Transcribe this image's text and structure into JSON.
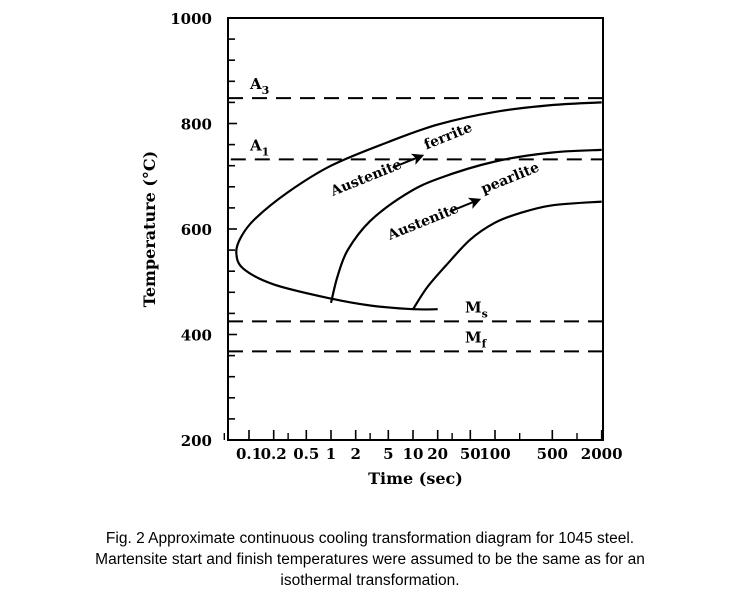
{
  "chart_data": {
    "type": "line",
    "title": "",
    "ylabel": "Temperature (°C)",
    "xlabel": "Time (sec)",
    "ylim": [
      200,
      1000
    ],
    "y_ticks_major": [
      200,
      400,
      600,
      800,
      1000
    ],
    "x_scale": "log",
    "xlim": [
      0.035,
      2000
    ],
    "x_tick_labels": [
      "0.1",
      "0.2",
      "0.5",
      "1",
      "2",
      "5",
      "10",
      "20",
      "50",
      "100",
      "500",
      "2000"
    ],
    "x_tick_values": [
      0.1,
      0.2,
      0.5,
      1,
      2,
      5,
      10,
      20,
      50,
      100,
      500,
      2000
    ],
    "reference_lines": [
      {
        "label_main": "A",
        "label_sub": "3",
        "y": 848,
        "x_start": 0.035
      },
      {
        "label_main": "A",
        "label_sub": "1",
        "y": 732,
        "x_start": 0.06
      },
      {
        "label_main": "M",
        "label_sub": "s",
        "y": 425,
        "x_start": 0.035
      },
      {
        "label_main": "M",
        "label_sub": "f",
        "y": 368,
        "x_start": 0.035
      }
    ],
    "series": [
      {
        "points": [
          [
            2000,
            840
          ],
          [
            500,
            835
          ],
          [
            100,
            822
          ],
          [
            20,
            798
          ],
          [
            5,
            765
          ],
          [
            1,
            720
          ],
          [
            0.3,
            670
          ],
          [
            0.12,
            620
          ],
          [
            0.08,
            585
          ],
          [
            0.07,
            555
          ],
          [
            0.085,
            525
          ],
          [
            0.2,
            495
          ],
          [
            1,
            468
          ],
          [
            3,
            455
          ],
          [
            10,
            448
          ],
          [
            20,
            448
          ]
        ]
      },
      {
        "points": [
          [
            2000,
            750
          ],
          [
            500,
            745
          ],
          [
            100,
            728
          ],
          [
            20,
            695
          ],
          [
            8,
            665
          ],
          [
            3,
            615
          ],
          [
            1.6,
            560
          ],
          [
            1.2,
            510
          ],
          [
            1,
            460
          ]
        ]
      },
      {
        "points": [
          [
            2000,
            652
          ],
          [
            500,
            645
          ],
          [
            200,
            630
          ],
          [
            100,
            612
          ],
          [
            50,
            580
          ],
          [
            25,
            530
          ],
          [
            15,
            490
          ],
          [
            10,
            448
          ]
        ]
      }
    ],
    "annotations": [
      {
        "id": "austenite-ferrite",
        "from": "Austenite",
        "to": "ferrite"
      },
      {
        "id": "austenite-pearlite",
        "from": "Austenite",
        "to": "pearlite"
      }
    ]
  },
  "caption": {
    "line1": "Fig. 2 Approximate continuous cooling transformation diagram for 1045 steel.",
    "line2": "Martensite start and finish temperatures were assumed to be the same as for an",
    "line3": "isothermal transformation."
  }
}
